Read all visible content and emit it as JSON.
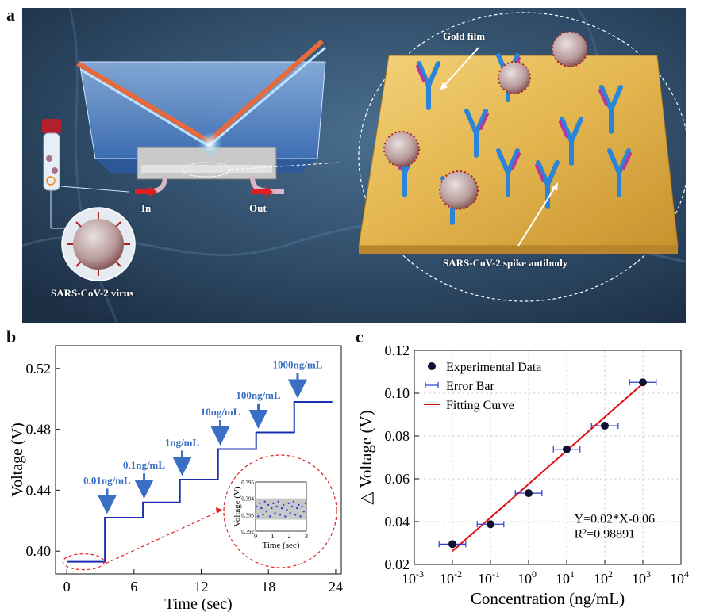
{
  "panel_a": {
    "letter": "a",
    "labels": {
      "gold_film": "Gold film",
      "inlet": "In",
      "outlet": "Out",
      "virus": "SARS-CoV-2 virus",
      "antibody": "SARS-CoV-2 spike antibody"
    }
  },
  "chart_data": [
    {
      "type": "line",
      "letter": "b",
      "xlabel": "Time (sec)",
      "ylabel": "Voltage (V)",
      "xlim": [
        -1,
        24.5
      ],
      "ylim": [
        0.385,
        0.535
      ],
      "xticks": [
        0,
        6,
        12,
        18,
        24
      ],
      "yticks": [
        0.4,
        0.44,
        0.48,
        0.52
      ],
      "ytick_labels": [
        "0.40",
        "0.44",
        "0.48",
        "0.52"
      ],
      "series": [
        {
          "x": [
            0,
            3.4,
            3.4,
            6.8,
            6.8,
            10.1,
            10.1,
            13.5,
            13.5,
            16.9,
            16.9,
            20.3,
            20.3,
            23.7
          ],
          "y": [
            0.393,
            0.393,
            0.422,
            0.422,
            0.432,
            0.432,
            0.447,
            0.447,
            0.467,
            0.467,
            0.478,
            0.478,
            0.498,
            0.498
          ]
        }
      ],
      "color": "#1a2fb0",
      "annotations": [
        {
          "text": "0.01ng/mL",
          "x": 3.6,
          "y": 0.4275
        },
        {
          "text": "0.1ng/mL",
          "x": 6.9,
          "y": 0.4375
        },
        {
          "text": "1ng/mL",
          "x": 10.3,
          "y": 0.4525
        },
        {
          "text": "10ng/mL",
          "x": 13.7,
          "y": 0.4725
        },
        {
          "text": "100ng/mL",
          "x": 17.1,
          "y": 0.4835
        },
        {
          "text": "1000ng/mL",
          "x": 20.6,
          "y": 0.5035
        }
      ],
      "annotation_color": "#3a6fc4",
      "inset": {
        "xlabel": "Time (sec)",
        "ylabel": "Voltage (V)",
        "xlim": [
          0,
          3
        ],
        "ylim": [
          0.392,
          0.395
        ],
        "xticks": [
          0,
          1,
          2,
          3
        ],
        "yticks": [
          0.392,
          0.393,
          0.394,
          0.395
        ],
        "band": [
          0.3927,
          0.394
        ],
        "points_x": [
          0.05,
          0.15,
          0.25,
          0.35,
          0.45,
          0.55,
          0.65,
          0.75,
          0.85,
          0.95,
          1.05,
          1.15,
          1.25,
          1.35,
          1.45,
          1.55,
          1.65,
          1.75,
          1.85,
          1.95,
          2.05,
          2.15,
          2.25,
          2.35,
          2.45,
          2.55,
          2.65,
          2.75,
          2.85,
          2.95
        ],
        "points_y": [
          0.3935,
          0.3929,
          0.3937,
          0.3934,
          0.393,
          0.3938,
          0.3932,
          0.3936,
          0.3929,
          0.3934,
          0.3937,
          0.3931,
          0.3935,
          0.3938,
          0.393,
          0.3934,
          0.3936,
          0.3929,
          0.3933,
          0.3937,
          0.3931,
          0.3935,
          0.3938,
          0.393,
          0.3934,
          0.3936,
          0.3929,
          0.3935,
          0.3932,
          0.3937
        ]
      }
    },
    {
      "type": "scatter",
      "letter": "c",
      "xlabel": "Concentration (ng/mL)",
      "ylabel": "△ Voltage (V)",
      "x_scale": "log",
      "xlim_exp": [
        -3,
        4
      ],
      "ylim": [
        0.02,
        0.12
      ],
      "xtick_exponents": [
        -3,
        -2,
        -1,
        0,
        1,
        2,
        3,
        4
      ],
      "xtick_base": "10",
      "yticks": [
        0.02,
        0.04,
        0.06,
        0.08,
        0.1,
        0.12
      ],
      "ytick_labels": [
        "0.02",
        "0.04",
        "0.06",
        "0.08",
        "0.10",
        "0.12"
      ],
      "grid": true,
      "x": [
        0.01,
        0.1,
        1,
        10,
        100,
        1000
      ],
      "y": [
        0.0295,
        0.0388,
        0.0533,
        0.0738,
        0.0848,
        0.1051
      ],
      "xerr_log": 0.35,
      "fit": {
        "x": [
          0.01,
          1000
        ],
        "y": [
          0.0262,
          0.1045
        ],
        "color": "#e01010"
      },
      "legend": {
        "placement": "top-left",
        "entries": [
          "Experimental Data",
          "Error Bar",
          "Fitting Curve"
        ]
      },
      "equation": "Y=0.02*X-0.06",
      "r_squared": "R²=0.98891",
      "point_color": "#111133",
      "errorbar_color": "#2a3fd0"
    }
  ]
}
